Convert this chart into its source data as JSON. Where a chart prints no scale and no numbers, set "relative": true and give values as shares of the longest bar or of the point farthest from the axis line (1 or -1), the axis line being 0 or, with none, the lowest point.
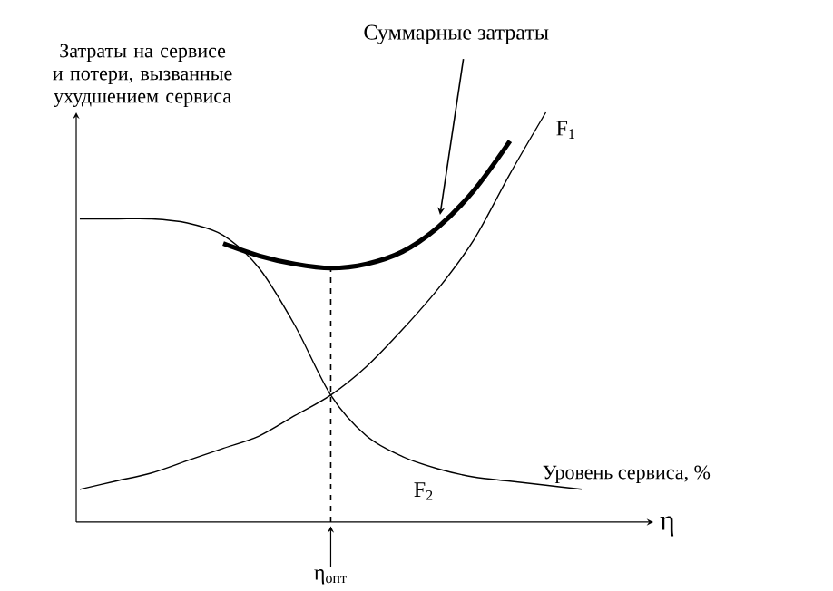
{
  "chart_data": {
    "type": "line",
    "relative": true,
    "ylabel": "Затраты на сервисе и потери, вызванные ухудшением сервиса",
    "xlabel": "Уровень сервиса, %",
    "categories": [
      null,
      null,
      null,
      null,
      null,
      null,
      null,
      null,
      null,
      null,
      null,
      null,
      null,
      null,
      null,
      null
    ],
    "series": [
      {
        "name": "F$_{1}$",
        "color": "#000000",
        "values": [
          0.08,
          0.1,
          0.12,
          0.15,
          0.18,
          0.21,
          0.26,
          0.31,
          0.38,
          0.47,
          0.57,
          0.69,
          0.85,
          1.0,
          null,
          null
        ]
      },
      {
        "name": "F$_{2}$",
        "color": "#000000",
        "values": [
          0.74,
          0.74,
          0.74,
          0.73,
          0.7,
          0.62,
          0.48,
          0.31,
          0.21,
          0.16,
          0.13,
          0.11,
          0.1,
          0.09,
          0.08,
          null
        ]
      },
      {
        "color": "#000000",
        "values": [
          null,
          null,
          null,
          null,
          0.68,
          0.65,
          0.63,
          0.62,
          0.63,
          0.66,
          0.72,
          0.81,
          0.93,
          null,
          null,
          null
        ]
      }
    ],
    "annotations": [
      "Суммарные затраты",
      "η",
      "η$_{опт}$"
    ],
    "line_style": "solid",
    "marker": "none"
  }
}
